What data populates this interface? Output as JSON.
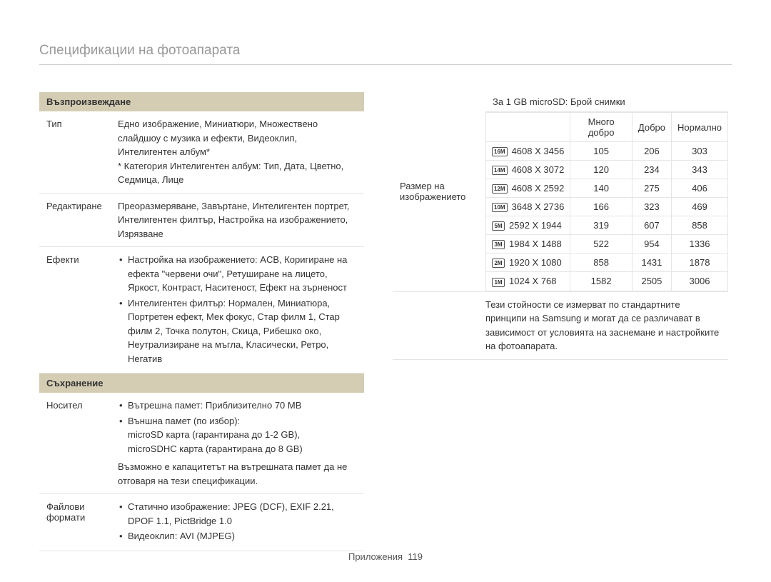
{
  "page_title": "Спецификации на фотоапарата",
  "left": {
    "sections": [
      {
        "header": "Възпроизвеждане",
        "rows": [
          {
            "label": "Тип",
            "value_html": "Едно изображение, Миниатюри, Множествено слайдшоу с музика и ефекти, Видеоклип, Интелигентен албум*<br>* Категория Интелигентен албум: Тип, Дата, Цветно, Седмица, Лице"
          },
          {
            "label": "Редактиране",
            "value_html": "Преоразмеряване, Завъртане, Интелигентен портрет, Интелигентен филтър, Настройка на изображението, Изрязване"
          },
          {
            "label": "Ефекти",
            "value_bullets": [
              "Настройка на изображението: ACB, Коригиране на ефекта \"червени очи\", Ретуширане на лицето, Яркост, Контраст, Наситеност, Ефект на зърненост",
              "Интелигентен филтър: Нормален, Миниатюра, Портретен ефект, Мек фокус, Стар филм 1, Стар филм 2, Точка полутон, Скица, Рибешко око, Неутрализиране на мъгла, Класически, Ретро, Негатив"
            ]
          }
        ]
      },
      {
        "header": "Съхранение",
        "rows": [
          {
            "label": "Носител",
            "value_bullets": [
              "Вътрешна памет: Приблизително 70 MB",
              "Външна памет (по избор):<br>microSD карта (гарантирана до 1-2 GB),<br>microSDHC карта (гарантирана до 8 GB)"
            ],
            "value_plain": "Възможно е капацитетът на вътрешната памет да не отговаря на тези спецификации."
          },
          {
            "label": "Файлови формати",
            "value_bullets": [
              "Статично изображение: JPEG (DCF), EXIF 2.21, DPOF 1.1, PictBridge 1.0",
              "Видеоклип: AVI (MJPEG)"
            ]
          }
        ]
      }
    ]
  },
  "right": {
    "size_label": "Размер на изображението",
    "table_title": "За 1 GB microSD: Брой снимки",
    "table": {
      "columns": [
        "Много добро",
        "Добро",
        "Нормално"
      ],
      "rows": [
        {
          "icon": "16M",
          "res": "4608 X 3456",
          "vals": [
            "105",
            "206",
            "303"
          ]
        },
        {
          "icon": "14M",
          "res": "4608 X 3072",
          "vals": [
            "120",
            "234",
            "343"
          ]
        },
        {
          "icon": "12M",
          "res": "4608 X 2592",
          "vals": [
            "140",
            "275",
            "406"
          ]
        },
        {
          "icon": "10M",
          "res": "3648 X 2736",
          "vals": [
            "166",
            "323",
            "469"
          ]
        },
        {
          "icon": "5M",
          "res": "2592 X 1944",
          "vals": [
            "319",
            "607",
            "858"
          ]
        },
        {
          "icon": "3M",
          "res": "1984 X 1488",
          "vals": [
            "522",
            "954",
            "1336"
          ]
        },
        {
          "icon": "2M",
          "res": "1920 X 1080",
          "vals": [
            "858",
            "1431",
            "1878"
          ]
        },
        {
          "icon": "1M",
          "res": "1024 X 768",
          "vals": [
            "1582",
            "2505",
            "3006"
          ]
        }
      ]
    },
    "footnote": "Тези стойности се измерват по стандартните принципи на Samsung и могат да се различават в зависимост от условията на заснемане и настройките на фотоапарата."
  },
  "footer": {
    "section": "Приложения",
    "page": "119"
  }
}
